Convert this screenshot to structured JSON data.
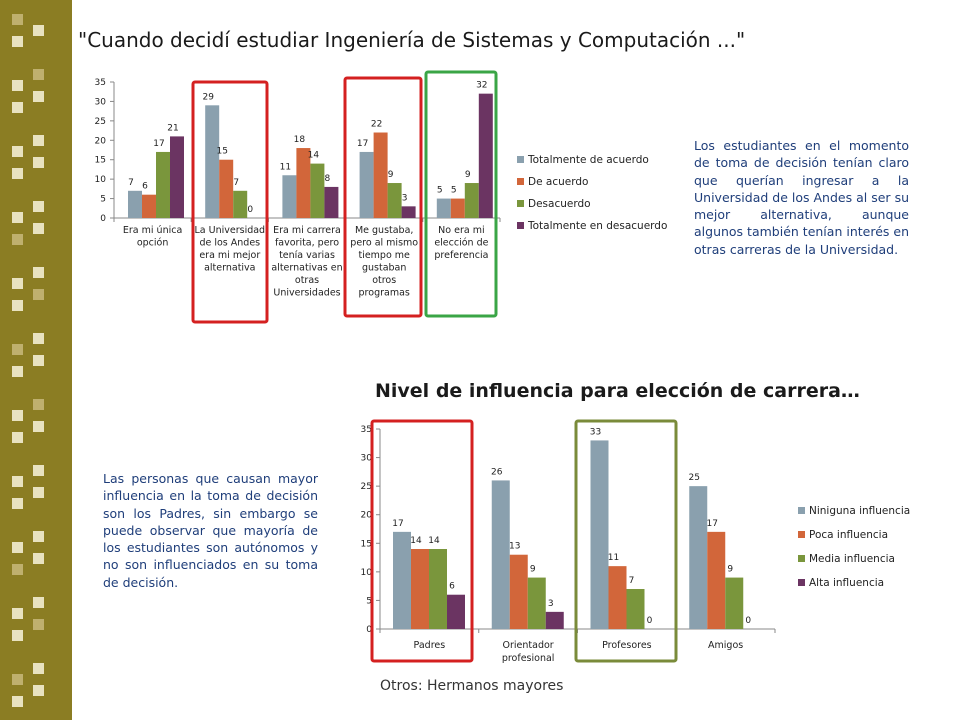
{
  "title1": "\"Cuando decidí estudiar Ingeniería de Sistemas y Computación ...\"",
  "title2": "Nivel de influencia para elección de carrera…",
  "description1": "Los estudiantes en el momento de toma de decisión tenían claro que querían ingresar a la Universidad de los Andes al ser su mejor alternativa, aunque algunos también tenían interés en otras carreras de la Universidad.",
  "description2": "Las personas que causan mayor influencia en la toma de decisión son los Padres, sin embargo se puede observar que mayoría de los estudiantes son autónomos y no son influenciados en su toma de decisión.",
  "footnote": "Otros: Hermanos mayores",
  "colors": {
    "series1": "#8aa0ae",
    "series2": "#d2663a",
    "series3": "#7a963c",
    "series4": "#6b3462",
    "red_box": "#d42020",
    "green_box1": "#3aa546",
    "olive_box": "#7a8b3a"
  },
  "chart_data": [
    {
      "type": "bar",
      "title": "",
      "categories": [
        [
          "Era mi única",
          "opción"
        ],
        [
          "La Universidad",
          "de los Andes",
          "era mi mejor",
          "alternativa"
        ],
        [
          "Era mi carrera",
          "favorita, pero",
          "tenía varias",
          "alternativas en",
          "otras",
          "Universidades"
        ],
        [
          "Me gustaba,",
          "pero al mismo",
          "tiempo me",
          "gustaban",
          "otros",
          "programas"
        ],
        [
          "No era mi",
          "elección de",
          "preferencia"
        ]
      ],
      "series": [
        {
          "name": "Totalmente de acuerdo",
          "values": [
            7,
            29,
            11,
            17,
            5
          ]
        },
        {
          "name": "De acuerdo",
          "values": [
            6,
            15,
            18,
            22,
            5
          ]
        },
        {
          "name": "Desacuerdo",
          "values": [
            17,
            7,
            14,
            9,
            9
          ]
        },
        {
          "name": "Totalmente en desacuerdo",
          "values": [
            21,
            0,
            8,
            3,
            32
          ]
        }
      ],
      "ylim": [
        0,
        35
      ],
      "yticks": [
        0,
        5,
        10,
        15,
        20,
        25,
        30,
        35
      ],
      "legend": "right",
      "grid": false,
      "highlight": [
        {
          "category": 1,
          "color": "red"
        },
        {
          "category": 3,
          "color": "red"
        },
        {
          "category": 4,
          "color": "green"
        }
      ]
    },
    {
      "type": "bar",
      "title": "",
      "categories": [
        [
          "Padres"
        ],
        [
          "Orientador",
          "profesional"
        ],
        [
          "Profesores"
        ],
        [
          "Amigos"
        ]
      ],
      "series": [
        {
          "name": "Niniguna influencia",
          "values": [
            17,
            26,
            33,
            25
          ]
        },
        {
          "name": "Poca influencia",
          "values": [
            14,
            13,
            11,
            17
          ]
        },
        {
          "name": "Media influencia",
          "values": [
            14,
            9,
            7,
            9
          ]
        },
        {
          "name": "Alta influencia",
          "values": [
            6,
            3,
            0,
            0
          ]
        }
      ],
      "ylim": [
        0,
        35
      ],
      "yticks": [
        0,
        5,
        10,
        15,
        20,
        25,
        30,
        35
      ],
      "legend": "right",
      "grid": false,
      "highlight": [
        {
          "category": 0,
          "color": "red"
        },
        {
          "category": 2,
          "color": "olive"
        }
      ]
    }
  ]
}
